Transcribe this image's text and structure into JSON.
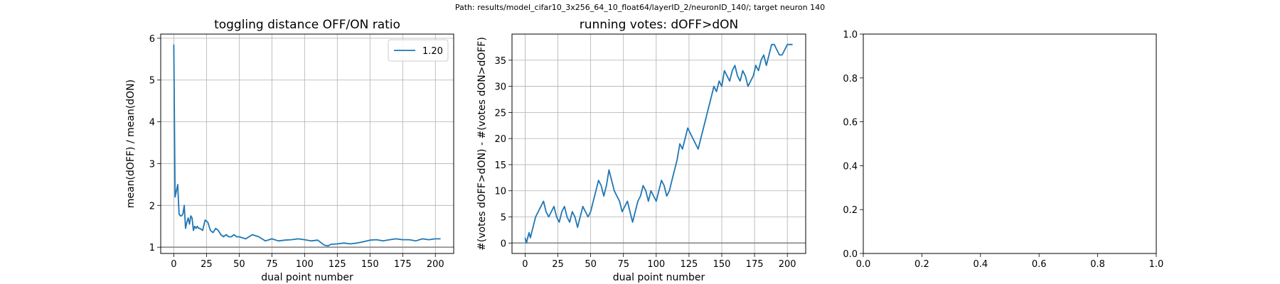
{
  "suptitle": "Path: results/model_cifar10_3x256_64_10_float64/layerID_2/neuronID_140/; target neuron 140",
  "colors": {
    "series": "#1f77b4",
    "hline": "#808080",
    "grid": "#b0b0b0"
  },
  "chart_data": [
    {
      "type": "line",
      "title": "toggling distance OFF/ON ratio",
      "xlabel": "dual point number",
      "ylabel": "mean(dOFF) / mean(dON)",
      "xlim": [
        -10,
        214
      ],
      "ylim": [
        0.85,
        6.1
      ],
      "xticks": [
        0,
        25,
        50,
        75,
        100,
        125,
        150,
        175,
        200
      ],
      "yticks": [
        1,
        2,
        3,
        4,
        5,
        6
      ],
      "grid": true,
      "legend": {
        "position": "top-right",
        "entries": [
          "1.20"
        ]
      },
      "hline": 1,
      "series": [
        {
          "name": "1.20",
          "x": [
            0,
            1,
            2,
            3,
            4,
            5,
            6,
            7,
            8,
            9,
            10,
            11,
            12,
            13,
            14,
            15,
            16,
            17,
            18,
            19,
            20,
            22,
            24,
            26,
            28,
            30,
            32,
            34,
            36,
            38,
            40,
            42,
            44,
            46,
            48,
            50,
            55,
            60,
            65,
            70,
            75,
            80,
            85,
            90,
            95,
            100,
            105,
            110,
            115,
            118,
            120,
            125,
            130,
            135,
            140,
            145,
            150,
            155,
            160,
            165,
            170,
            175,
            180,
            185,
            190,
            195,
            200,
            204
          ],
          "y": [
            5.85,
            2.2,
            2.35,
            2.5,
            1.8,
            1.75,
            1.75,
            1.8,
            2.0,
            1.45,
            1.6,
            1.7,
            1.55,
            1.75,
            1.7,
            1.4,
            1.5,
            1.45,
            1.5,
            1.45,
            1.45,
            1.4,
            1.65,
            1.6,
            1.4,
            1.35,
            1.45,
            1.4,
            1.3,
            1.25,
            1.3,
            1.25,
            1.25,
            1.3,
            1.25,
            1.25,
            1.2,
            1.3,
            1.25,
            1.15,
            1.2,
            1.15,
            1.17,
            1.18,
            1.2,
            1.18,
            1.15,
            1.17,
            1.05,
            1.03,
            1.07,
            1.08,
            1.1,
            1.08,
            1.1,
            1.13,
            1.17,
            1.18,
            1.15,
            1.18,
            1.2,
            1.18,
            1.18,
            1.15,
            1.2,
            1.18,
            1.2,
            1.2
          ]
        }
      ]
    },
    {
      "type": "line",
      "title": "running votes: dOFF>dON",
      "xlabel": "dual point number",
      "ylabel": "#(votes dOFF>dON) - #(votes dON>dOFF)",
      "xlim": [
        -10,
        214
      ],
      "ylim": [
        -2,
        40
      ],
      "xticks": [
        0,
        25,
        50,
        75,
        100,
        125,
        150,
        175,
        200
      ],
      "yticks": [
        0,
        5,
        10,
        15,
        20,
        25,
        30,
        35
      ],
      "grid": true,
      "hline": 0,
      "series": [
        {
          "x": [
            0,
            1,
            2,
            3,
            4,
            6,
            8,
            10,
            12,
            14,
            16,
            18,
            20,
            22,
            24,
            26,
            28,
            30,
            32,
            34,
            36,
            38,
            40,
            42,
            44,
            46,
            48,
            50,
            52,
            54,
            56,
            58,
            60,
            62,
            64,
            66,
            68,
            70,
            72,
            74,
            76,
            78,
            80,
            82,
            84,
            86,
            88,
            90,
            92,
            94,
            96,
            98,
            100,
            102,
            104,
            106,
            108,
            110,
            112,
            114,
            116,
            118,
            120,
            122,
            124,
            126,
            128,
            130,
            132,
            134,
            136,
            138,
            140,
            142,
            144,
            146,
            148,
            150,
            152,
            154,
            156,
            158,
            160,
            162,
            164,
            166,
            168,
            170,
            172,
            174,
            176,
            178,
            180,
            182,
            184,
            186,
            188,
            190,
            192,
            194,
            196,
            198,
            200,
            202,
            204
          ],
          "y": [
            1,
            0,
            1,
            2,
            1,
            3,
            5,
            6,
            7,
            8,
            6,
            5,
            6,
            7,
            5,
            4,
            6,
            7,
            5,
            4,
            6,
            5,
            3,
            5,
            7,
            6,
            5,
            6,
            8,
            10,
            12,
            11,
            9,
            11,
            14,
            12,
            10,
            9,
            8,
            6,
            7,
            8,
            6,
            4,
            6,
            8,
            9,
            11,
            10,
            8,
            10,
            9,
            8,
            10,
            12,
            11,
            9,
            10,
            12,
            14,
            16,
            19,
            18,
            20,
            22,
            21,
            20,
            19,
            18,
            20,
            22,
            24,
            26,
            28,
            30,
            29,
            31,
            30,
            33,
            32,
            31,
            33,
            34,
            32,
            31,
            33,
            32,
            30,
            31,
            32,
            34,
            33,
            35,
            36,
            34,
            36,
            38,
            38,
            37,
            36,
            36,
            37,
            38,
            38,
            38
          ]
        }
      ]
    },
    {
      "type": "line",
      "title": "",
      "xlim": [
        0,
        1
      ],
      "ylim": [
        0,
        1
      ],
      "xticks": [
        "0.0",
        "0.2",
        "0.4",
        "0.6",
        "0.8",
        "1.0"
      ],
      "yticks": [
        "0.0",
        "0.2",
        "0.4",
        "0.6",
        "0.8",
        "1.0"
      ],
      "grid": false,
      "series": []
    }
  ]
}
